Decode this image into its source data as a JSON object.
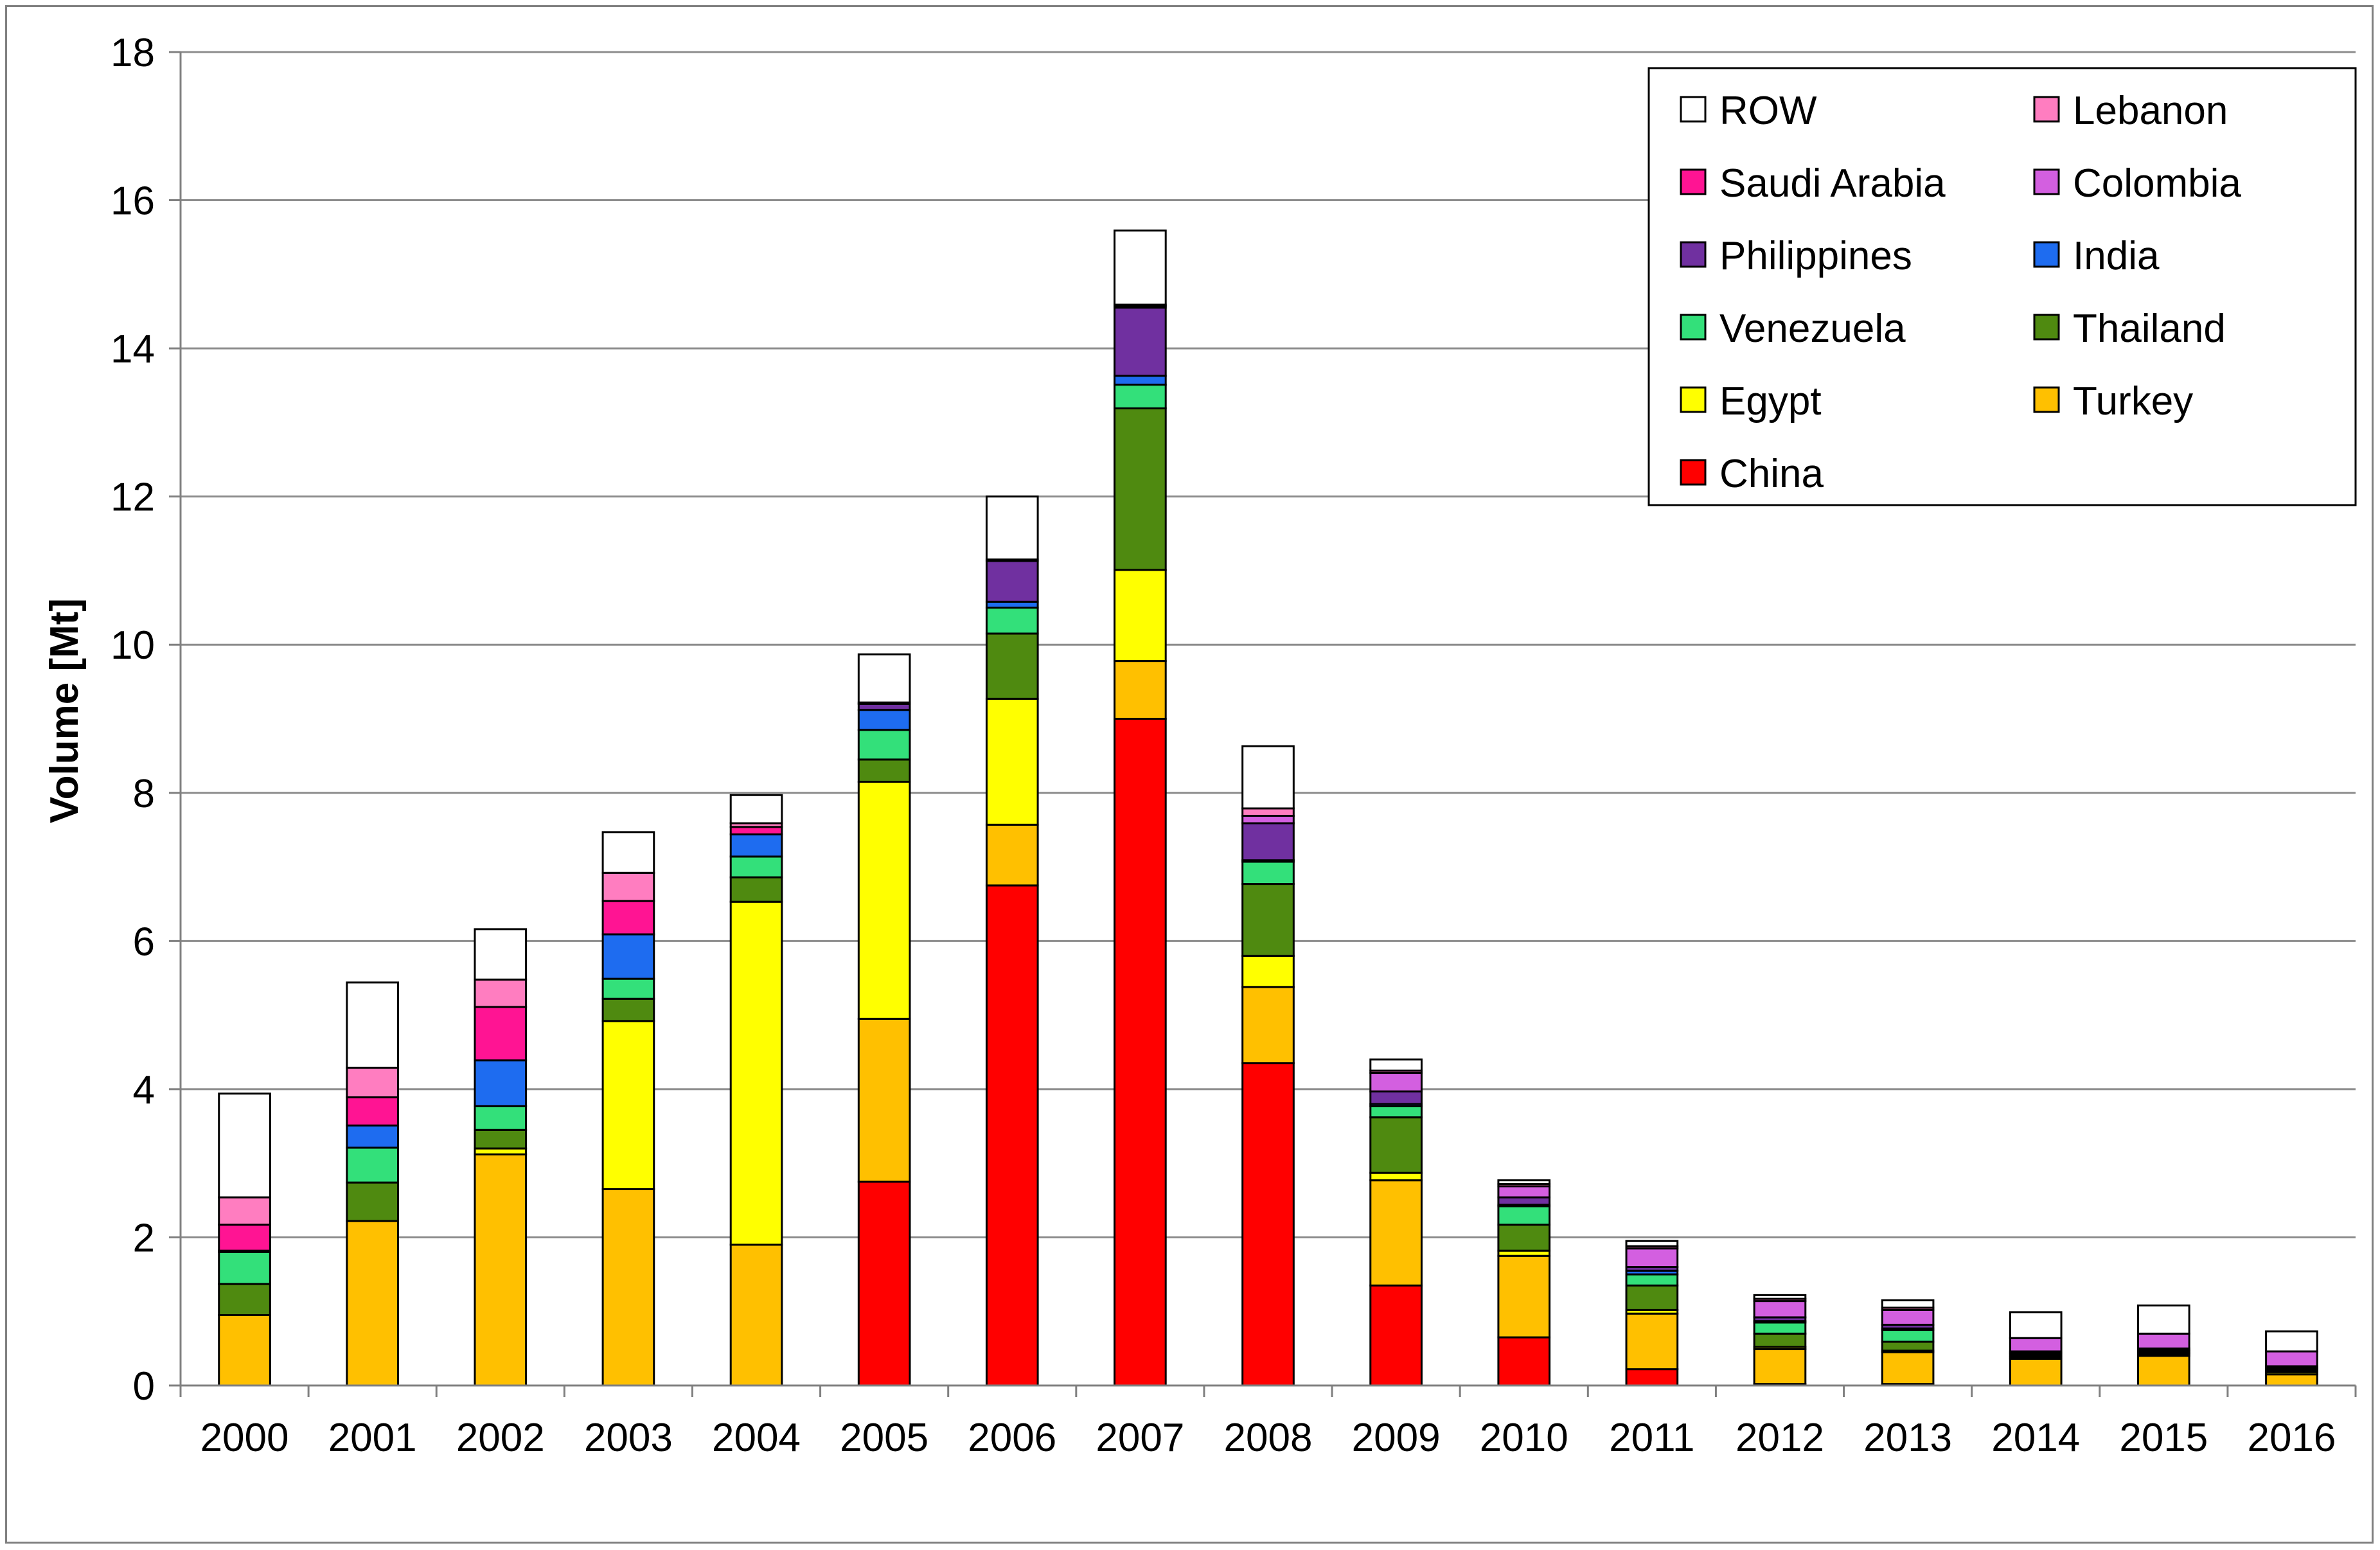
{
  "chart_data": {
    "type": "bar",
    "stacked": true,
    "title": "",
    "xlabel": "",
    "ylabel": "Volume [Mt]",
    "ylim": [
      0,
      18
    ],
    "yticks": [
      "0",
      "2",
      "4",
      "6",
      "8",
      "10",
      "12",
      "14",
      "16",
      "18"
    ],
    "grid": true,
    "legend_position": "top-right",
    "categories": [
      "2000",
      "2001",
      "2002",
      "2003",
      "2004",
      "2005",
      "2006",
      "2007",
      "2008",
      "2009",
      "2010",
      "2011",
      "2012",
      "2013",
      "2014",
      "2015",
      "2016"
    ],
    "series": [
      {
        "name": "China",
        "color": "#ff0000",
        "values": [
          0,
          0,
          0,
          0,
          0,
          2.75,
          6.75,
          9.0,
          4.35,
          1.35,
          0.65,
          0.22,
          0.02,
          0.02,
          0,
          0,
          0
        ]
      },
      {
        "name": "Turkey",
        "color": "#ffc000",
        "values": [
          0.95,
          2.22,
          3.12,
          2.65,
          1.9,
          2.2,
          0.82,
          0.78,
          1.03,
          1.42,
          1.1,
          0.75,
          0.47,
          0.43,
          0.36,
          0.4,
          0.15
        ]
      },
      {
        "name": "Egypt",
        "color": "#ffff00",
        "values": [
          0,
          0,
          0.08,
          2.27,
          4.63,
          3.2,
          1.7,
          1.23,
          0.42,
          0.1,
          0.07,
          0.05,
          0.03,
          0.02,
          0.02,
          0.02,
          0.03
        ]
      },
      {
        "name": "Thailand",
        "color": "#4f8a10",
        "values": [
          0.42,
          0.52,
          0.25,
          0.3,
          0.33,
          0.3,
          0.88,
          2.18,
          0.97,
          0.75,
          0.35,
          0.33,
          0.18,
          0.12,
          0.02,
          0.02,
          0.02
        ]
      },
      {
        "name": "Venezuela",
        "color": "#33e07a",
        "values": [
          0.43,
          0.47,
          0.32,
          0.27,
          0.28,
          0.4,
          0.35,
          0.32,
          0.3,
          0.15,
          0.25,
          0.15,
          0.15,
          0.16,
          0.02,
          0.02,
          0.02
        ]
      },
      {
        "name": "India",
        "color": "#1e6cf0",
        "values": [
          0.02,
          0.3,
          0.62,
          0.6,
          0.3,
          0.27,
          0.08,
          0.12,
          0.02,
          0.03,
          0.02,
          0.05,
          0.02,
          0.02,
          0.02,
          0.02,
          0.02
        ]
      },
      {
        "name": "Philippines",
        "color": "#7030a0",
        "values": [
          0,
          0,
          0,
          0,
          0,
          0.08,
          0.55,
          0.92,
          0.5,
          0.17,
          0.1,
          0.05,
          0.05,
          0.05,
          0.02,
          0.02,
          0.02
        ]
      },
      {
        "name": "Colombia",
        "color": "#d35fe0",
        "values": [
          0,
          0,
          0,
          0,
          0,
          0.02,
          0.02,
          0.02,
          0.1,
          0.25,
          0.15,
          0.25,
          0.22,
          0.2,
          0.18,
          0.2,
          0.2
        ]
      },
      {
        "name": "Saudi Arabia",
        "color": "#ff1493",
        "values": [
          0.35,
          0.38,
          0.72,
          0.45,
          0.1,
          0,
          0,
          0,
          0,
          0,
          0,
          0,
          0,
          0,
          0,
          0,
          0
        ]
      },
      {
        "name": "Lebanon",
        "color": "#ff7dc0",
        "values": [
          0.37,
          0.4,
          0.37,
          0.38,
          0.05,
          0,
          0,
          0.02,
          0.1,
          0.03,
          0.03,
          0.03,
          0.03,
          0.03,
          0,
          0,
          0
        ]
      },
      {
        "name": "ROW",
        "color": "#ffffff",
        "values": [
          1.4,
          1.15,
          0.68,
          0.55,
          0.38,
          0.65,
          0.85,
          1.0,
          0.84,
          0.15,
          0.05,
          0.07,
          0.05,
          0.1,
          0.35,
          0.38,
          0.27
        ]
      }
    ],
    "legend_order": [
      "ROW",
      "Lebanon",
      "Saudi Arabia",
      "Colombia",
      "Philippines",
      "India",
      "Venezuela",
      "Thailand",
      "Egypt",
      "Turkey",
      "China"
    ]
  }
}
